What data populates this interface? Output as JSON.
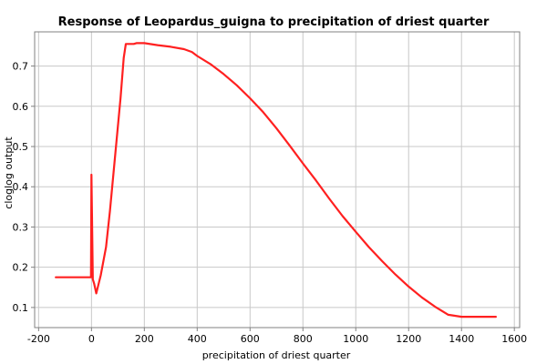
{
  "chart_data": {
    "type": "line",
    "title": "Response of Leopardus_guigna to precipitation of driest quarter",
    "xlabel": "precipitation of driest quarter",
    "ylabel": "cloglog output",
    "xlim": [
      -215,
      1620
    ],
    "ylim": [
      0.05,
      0.785
    ],
    "grid": true,
    "legend": "none",
    "x_ticks": [
      -200,
      0,
      200,
      400,
      600,
      800,
      1000,
      1200,
      1400,
      1600
    ],
    "y_ticks": [
      0.1,
      0.2,
      0.3,
      0.4,
      0.5,
      0.6,
      0.7
    ],
    "x_tick_labels": [
      "-200",
      "0",
      "200",
      "400",
      "600",
      "800",
      "1000",
      "1200",
      "1400",
      "1600"
    ],
    "y_tick_labels": [
      "0.1",
      "0.2",
      "0.3",
      "0.4",
      "0.5",
      "0.6",
      "0.7"
    ],
    "series": [
      {
        "name": "response",
        "color": "#ff2020",
        "x": [
          -135,
          -5,
          -2,
          0,
          2,
          5,
          10,
          18,
          35,
          55,
          70,
          90,
          110,
          122,
          130,
          160,
          170,
          200,
          250,
          300,
          350,
          380,
          400,
          450,
          500,
          550,
          600,
          650,
          700,
          750,
          800,
          850,
          900,
          950,
          1000,
          1050,
          1100,
          1150,
          1200,
          1250,
          1300,
          1350,
          1400,
          1530
        ],
        "values": [
          0.175,
          0.175,
          0.175,
          0.43,
          0.33,
          0.17,
          0.16,
          0.135,
          0.18,
          0.25,
          0.34,
          0.48,
          0.62,
          0.72,
          0.755,
          0.755,
          0.757,
          0.757,
          0.752,
          0.748,
          0.742,
          0.735,
          0.725,
          0.705,
          0.68,
          0.652,
          0.62,
          0.585,
          0.545,
          0.502,
          0.458,
          0.415,
          0.37,
          0.327,
          0.288,
          0.25,
          0.215,
          0.182,
          0.152,
          0.125,
          0.102,
          0.082,
          0.077,
          0.077
        ]
      }
    ]
  }
}
